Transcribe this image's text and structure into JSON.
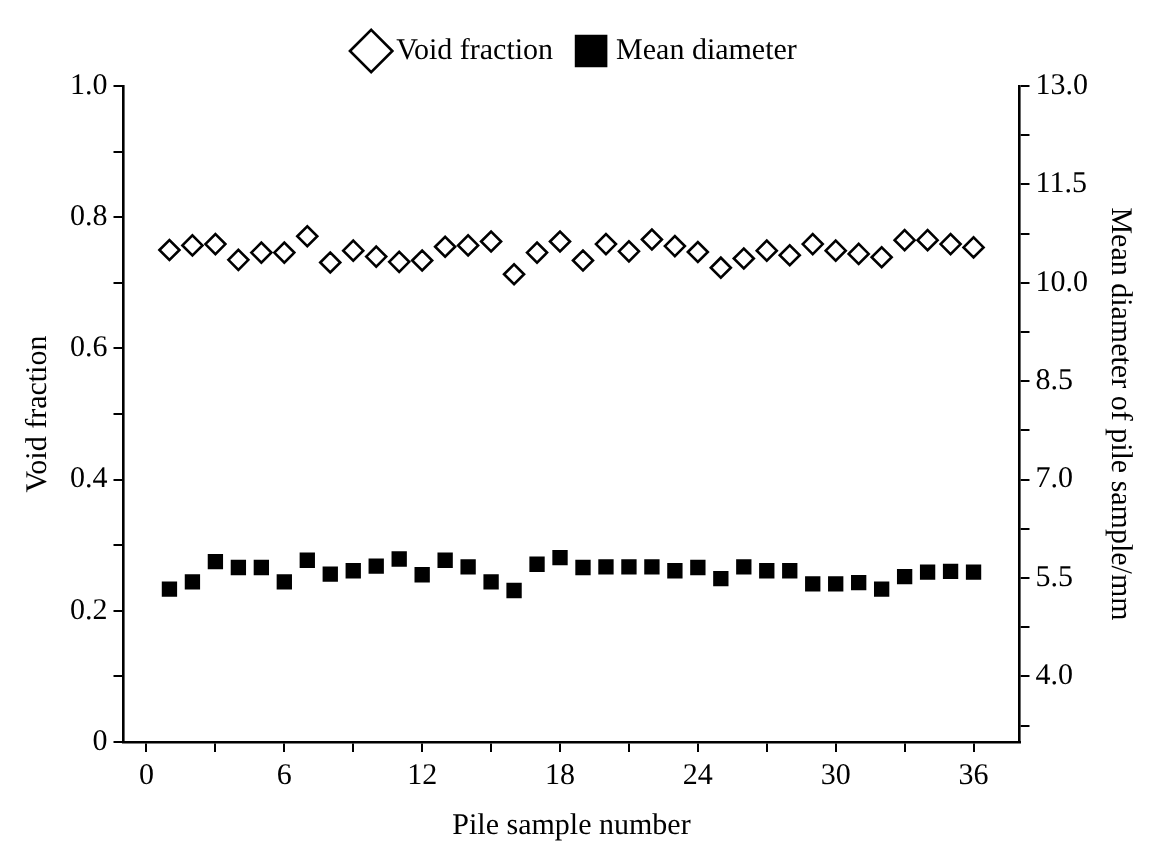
{
  "chart_data": {
    "type": "scatter",
    "xlabel": "Pile sample number",
    "ylabel": "Void fraction",
    "y2label": "Mean diameter of pile sample/mm",
    "x": [
      1,
      2,
      3,
      4,
      5,
      6,
      7,
      8,
      9,
      10,
      11,
      12,
      13,
      14,
      15,
      16,
      17,
      18,
      19,
      20,
      21,
      22,
      23,
      24,
      25,
      26,
      27,
      28,
      29,
      30,
      31,
      32,
      33,
      34,
      35,
      36
    ],
    "series": [
      {
        "name": "Void fraction",
        "color": "#000000",
        "marker": "diamond",
        "values": [
          0.75,
          0.757,
          0.759,
          0.735,
          0.746,
          0.746,
          0.771,
          0.731,
          0.749,
          0.74,
          0.732,
          0.734,
          0.755,
          0.757,
          0.763,
          0.713,
          0.746,
          0.763,
          0.734,
          0.759,
          0.748,
          0.766,
          0.756,
          0.747,
          0.723,
          0.737,
          0.749,
          0.742,
          0.759,
          0.749,
          0.744,
          0.739,
          0.765,
          0.765,
          0.759,
          0.754
        ]
      },
      {
        "name": "Mean diameter",
        "color": "#000000",
        "marker": "square",
        "axis": "y2",
        "values": [
          5.33,
          5.44,
          5.75,
          5.66,
          5.66,
          5.44,
          5.77,
          5.56,
          5.61,
          5.68,
          5.79,
          5.55,
          5.77,
          5.67,
          5.44,
          5.31,
          5.71,
          5.81,
          5.66,
          5.67,
          5.67,
          5.67,
          5.61,
          5.66,
          5.49,
          5.67,
          5.61,
          5.61,
          5.41,
          5.41,
          5.43,
          5.33,
          5.52,
          5.59,
          5.6,
          5.59
        ]
      }
    ],
    "xlim": [
      -1,
      38
    ],
    "xticks": [
      0,
      {
        "value": 3,
        "label": null
      },
      6,
      {
        "value": 9,
        "label": null
      },
      12,
      {
        "value": 15,
        "label": null
      },
      18,
      {
        "value": 21,
        "label": null
      },
      24,
      {
        "value": 27,
        "label": null
      },
      30,
      {
        "value": 33,
        "label": null
      },
      36
    ],
    "ylim": [
      0,
      1.0
    ],
    "yticks": [
      0,
      {
        "value": 0.1,
        "label": null
      },
      {
        "value": 0.2,
        "label": "0.2"
      },
      {
        "value": 0.3,
        "label": null
      },
      {
        "value": 0.4,
        "label": "0.4"
      },
      {
        "value": 0.5,
        "label": null
      },
      {
        "value": 0.6,
        "label": "0.6"
      },
      {
        "value": 0.7,
        "label": null
      },
      {
        "value": 0.8,
        "label": "0.8"
      },
      {
        "value": 0.9,
        "label": null
      },
      {
        "value": 1.0,
        "label": "1.0"
      }
    ],
    "y2lim": [
      3.0,
      13.0
    ],
    "y2ticks": [
      {
        "value": 3.25,
        "label": null
      },
      {
        "value": 4.0,
        "label": "4.0"
      },
      {
        "value": 4.75,
        "label": null
      },
      {
        "value": 5.5,
        "label": "5.5"
      },
      {
        "value": 6.25,
        "label": null
      },
      {
        "value": 7.0,
        "label": "7.0"
      },
      {
        "value": 7.75,
        "label": null
      },
      {
        "value": 8.5,
        "label": "8.5"
      },
      {
        "value": 9.25,
        "label": null
      },
      {
        "value": 10.0,
        "label": "10.0"
      },
      {
        "value": 10.75,
        "label": null
      },
      {
        "value": 11.5,
        "label": "11.5"
      },
      {
        "value": 12.25,
        "label": null
      },
      {
        "value": 13.0,
        "label": "13.0"
      }
    ],
    "grid": false,
    "legend": "top"
  }
}
